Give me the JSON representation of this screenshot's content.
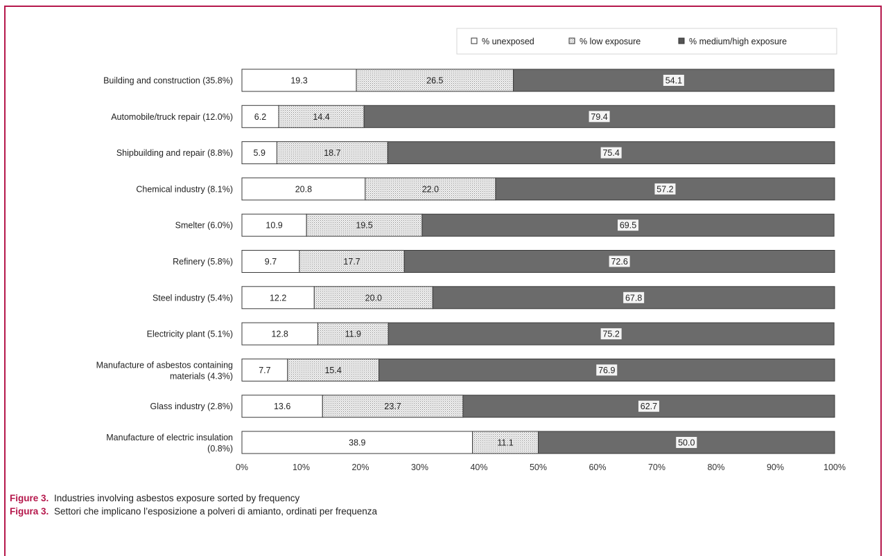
{
  "caption": {
    "en_label": "Figure 3.",
    "en_text": "Industries involving asbestos exposure sorted by frequency",
    "it_label": "Figura 3.",
    "it_text": "Settori che implicano l’esposizione a polveri di amianto, ordinati per frequenza"
  },
  "colors": {
    "frame": "#b5174b",
    "unexposed": "#ffffff",
    "low": "#dcdcdc",
    "medium_high": "#6b6b6b"
  },
  "chart_data": {
    "type": "bar",
    "orientation": "horizontal",
    "stacked": true,
    "title": "",
    "xlabel": "",
    "ylabel": "",
    "xlim": [
      0,
      100
    ],
    "x_ticks": [
      "0%",
      "10%",
      "20%",
      "30%",
      "40%",
      "50%",
      "60%",
      "70%",
      "80%",
      "90%",
      "100%"
    ],
    "legend_position": "top-right",
    "categories": [
      [
        "Building and construction (35.8%)"
      ],
      [
        "Automobile/truck repair (12.0%)"
      ],
      [
        "Shipbuilding and repair (8.8%)"
      ],
      [
        "Chemical industry (8.1%)"
      ],
      [
        "Smelter (6.0%)"
      ],
      [
        "Refinery (5.8%)"
      ],
      [
        "Steel industry (5.4%)"
      ],
      [
        "Electricity plant (5.1%)"
      ],
      [
        "Manufacture of asbestos containing",
        "materials (4.3%)"
      ],
      [
        "Glass industry (2.8%)"
      ],
      [
        "Manufacture of electric insulation",
        "(0.8%)"
      ]
    ],
    "series": [
      {
        "name": "% unexposed",
        "values": [
          19.3,
          6.2,
          5.9,
          20.8,
          10.9,
          9.7,
          12.2,
          12.8,
          7.7,
          13.6,
          38.9
        ]
      },
      {
        "name": "% low exposure",
        "values": [
          26.5,
          14.4,
          18.7,
          22.0,
          19.5,
          17.7,
          20.0,
          11.9,
          15.4,
          23.7,
          11.1
        ]
      },
      {
        "name": "% medium/high exposure",
        "values": [
          54.1,
          79.4,
          75.4,
          57.2,
          69.5,
          72.6,
          67.8,
          75.2,
          76.9,
          62.7,
          50.0
        ]
      }
    ]
  }
}
